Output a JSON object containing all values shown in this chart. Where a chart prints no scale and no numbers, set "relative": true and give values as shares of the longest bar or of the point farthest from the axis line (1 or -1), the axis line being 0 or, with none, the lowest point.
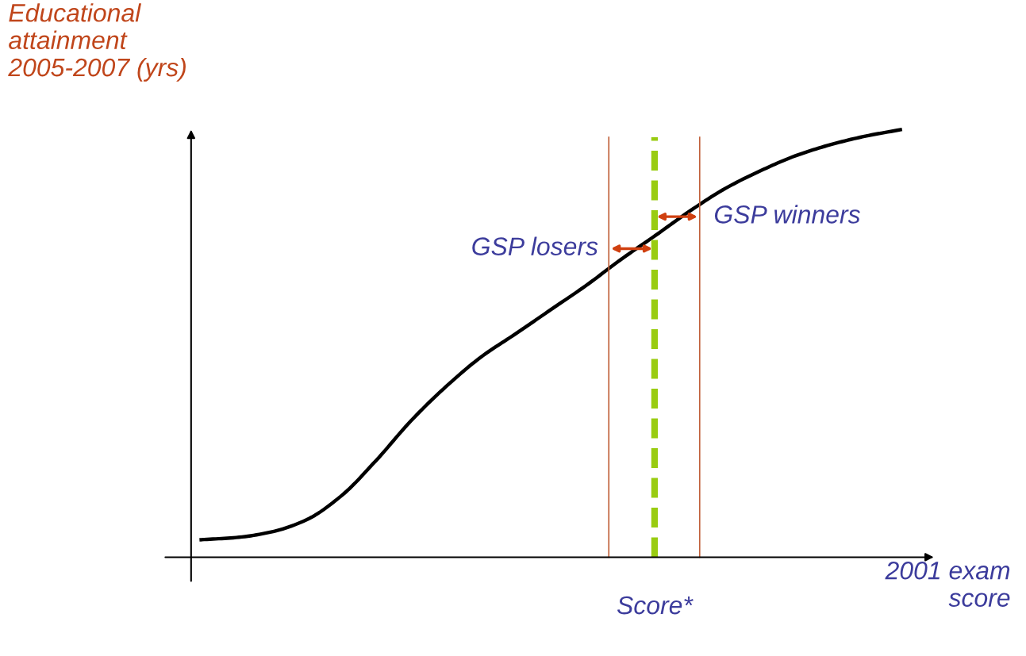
{
  "chart_data": {
    "type": "line",
    "relative": true,
    "xlabel": "2001 exam\nscore",
    "ylabel": "Educational\nattainment\n2005-2007 (yrs)",
    "categories": [
      null,
      null,
      null,
      null,
      null,
      null,
      null,
      null,
      null,
      null,
      null,
      null,
      null,
      null,
      null,
      null,
      null,
      null,
      null,
      null,
      null
    ],
    "series": [
      {
        "color": "#000000",
        "values": [
          0.041,
          0.046,
          0.059,
          0.087,
          0.143,
          0.226,
          0.319,
          0.399,
          0.468,
          0.523,
          0.579,
          0.635,
          0.696,
          0.753,
          0.811,
          0.863,
          0.904,
          0.939,
          0.965,
          0.985,
          1.0
        ]
      }
    ],
    "annotations": [
      "GSP losers",
      "GSP winners",
      "Score*"
    ],
    "marker": "none",
    "line_style": "solid",
    "grid": false,
    "legend": false,
    "tick_labels": false
  }
}
